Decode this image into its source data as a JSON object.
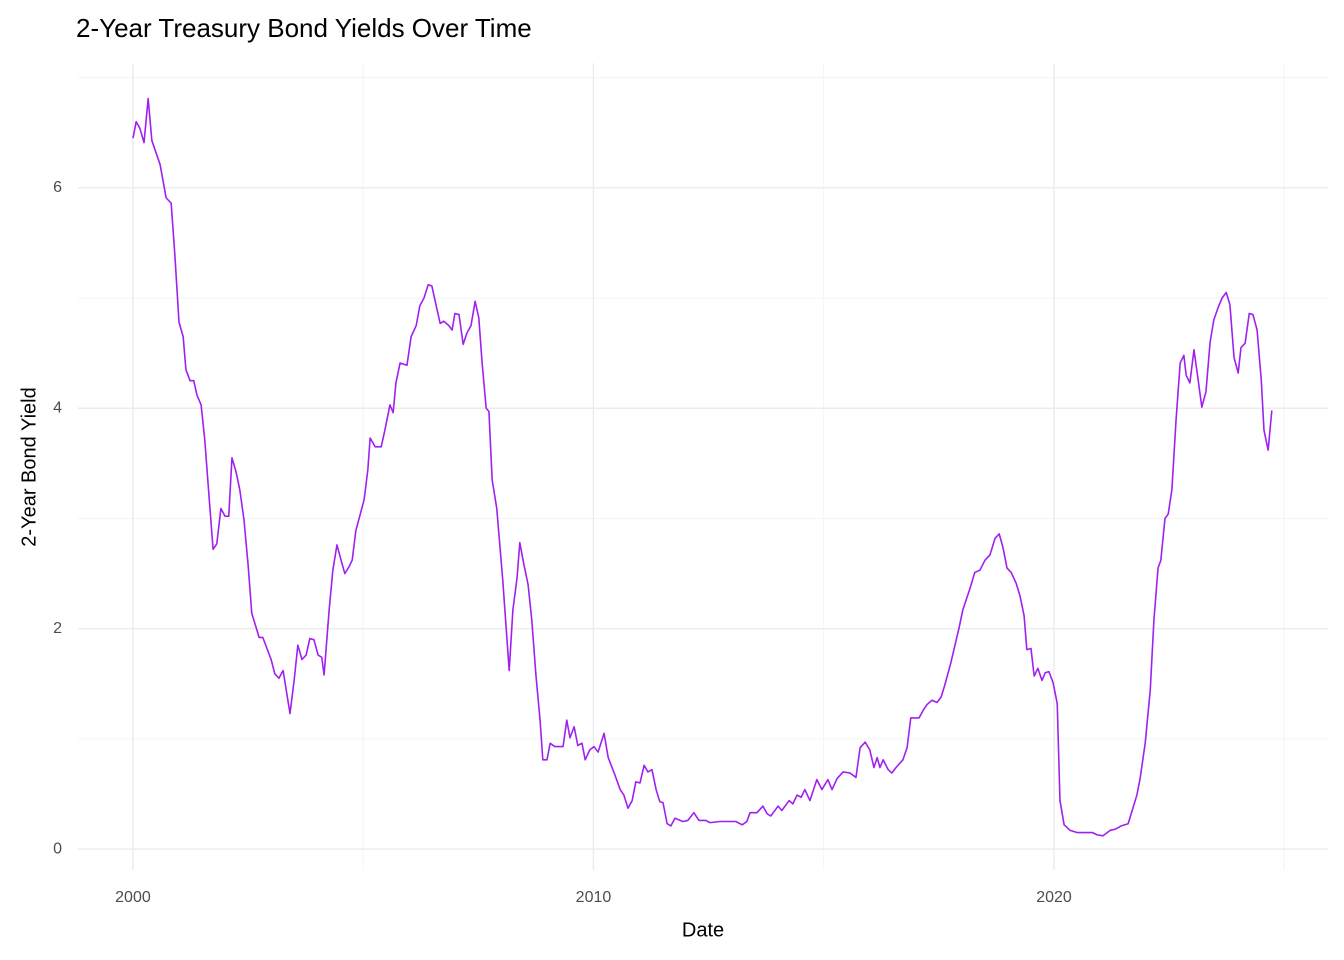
{
  "chart_data": {
    "type": "line",
    "title": "2-Year Treasury Bond Yields Over Time",
    "x_label": "Date",
    "y_label": "2-Year Bond Yield",
    "color": "#a020f0",
    "grid": true,
    "xlim": [
      1998.8,
      2025.95
    ],
    "xticks": [
      2000,
      2010,
      2020
    ],
    "x_minor_ticks": [
      2005,
      2015,
      2025
    ],
    "ylim": [
      -0.19,
      7.13
    ],
    "yticks": [
      0,
      2,
      4,
      6
    ],
    "y_minor_ticks": [
      1,
      3,
      5,
      7
    ],
    "x": [
      2000.0,
      2000.07,
      2000.15,
      2000.24,
      2000.33,
      2000.41,
      2000.59,
      2000.72,
      2000.83,
      2000.91,
      2001.0,
      2001.09,
      2001.15,
      2001.24,
      2001.32,
      2001.39,
      2001.48,
      2001.56,
      2001.65,
      2001.74,
      2001.82,
      2001.91,
      2002.0,
      2002.08,
      2002.15,
      2002.24,
      2002.32,
      2002.41,
      2002.5,
      2002.58,
      2002.74,
      2002.82,
      2002.91,
      2003.0,
      2003.08,
      2003.17,
      2003.26,
      2003.41,
      2003.5,
      2003.58,
      2003.67,
      2003.76,
      2003.84,
      2003.93,
      2004.02,
      2004.1,
      2004.15,
      2004.26,
      2004.34,
      2004.43,
      2004.52,
      2004.6,
      2004.69,
      2004.76,
      2004.84,
      2005.02,
      2005.1,
      2005.15,
      2005.26,
      2005.39,
      2005.47,
      2005.58,
      2005.65,
      2005.71,
      2005.8,
      2005.95,
      2006.04,
      2006.15,
      2006.23,
      2006.32,
      2006.41,
      2006.49,
      2006.58,
      2006.67,
      2006.75,
      2006.86,
      2006.93,
      2006.99,
      2007.08,
      2007.17,
      2007.25,
      2007.34,
      2007.43,
      2007.51,
      2007.58,
      2007.67,
      2007.73,
      2007.8,
      2007.9,
      2008.03,
      2008.17,
      2008.25,
      2008.34,
      2008.4,
      2008.49,
      2008.58,
      2008.66,
      2008.75,
      2008.84,
      2008.9,
      2008.99,
      2009.06,
      2009.16,
      2009.34,
      2009.42,
      2009.49,
      2009.58,
      2009.66,
      2009.75,
      2009.82,
      2009.92,
      2010.01,
      2010.1,
      2010.23,
      2010.32,
      2010.45,
      2010.58,
      2010.66,
      2010.75,
      2010.84,
      2010.92,
      2011.01,
      2011.1,
      2011.18,
      2011.27,
      2011.36,
      2011.44,
      2011.51,
      2011.6,
      2011.68,
      2011.77,
      2011.94,
      2012.05,
      2012.18,
      2012.29,
      2012.44,
      2012.53,
      2012.75,
      2013.09,
      2013.23,
      2013.33,
      2013.4,
      2013.55,
      2013.68,
      2013.77,
      2013.85,
      2014.01,
      2014.09,
      2014.25,
      2014.33,
      2014.42,
      2014.51,
      2014.59,
      2014.7,
      2014.85,
      2014.96,
      2015.09,
      2015.18,
      2015.29,
      2015.42,
      2015.57,
      2015.7,
      2015.79,
      2015.9,
      2016.0,
      2016.09,
      2016.16,
      2016.22,
      2016.29,
      2016.4,
      2016.48,
      2016.57,
      2016.72,
      2016.81,
      2016.89,
      2017.0,
      2017.07,
      2017.16,
      2017.24,
      2017.35,
      2017.46,
      2017.55,
      2017.63,
      2017.76,
      2017.94,
      2018.02,
      2018.18,
      2018.28,
      2018.39,
      2018.5,
      2018.61,
      2018.72,
      2018.81,
      2018.89,
      2018.98,
      2019.07,
      2019.18,
      2019.26,
      2019.35,
      2019.41,
      2019.5,
      2019.57,
      2019.65,
      2019.74,
      2019.81,
      2019.89,
      2019.98,
      2020.07,
      2020.13,
      2020.22,
      2020.35,
      2020.5,
      2020.67,
      2020.83,
      2020.93,
      2021.06,
      2021.22,
      2021.33,
      2021.46,
      2021.61,
      2021.69,
      2021.8,
      2021.87,
      2021.98,
      2022.09,
      2022.17,
      2022.26,
      2022.32,
      2022.41,
      2022.48,
      2022.56,
      2022.65,
      2022.74,
      2022.82,
      2022.87,
      2022.95,
      2023.04,
      2023.11,
      2023.21,
      2023.3,
      2023.39,
      2023.47,
      2023.56,
      2023.65,
      2023.74,
      2023.82,
      2023.91,
      2024.0,
      2024.06,
      2024.15,
      2024.24,
      2024.32,
      2024.41,
      2024.5,
      2024.56,
      2024.65,
      2024.73
    ],
    "values": [
      6.45,
      6.6,
      6.54,
      6.41,
      6.81,
      6.43,
      6.21,
      5.91,
      5.86,
      5.39,
      4.78,
      4.65,
      4.35,
      4.25,
      4.25,
      4.12,
      4.03,
      3.71,
      3.21,
      2.72,
      2.77,
      3.09,
      3.02,
      3.02,
      3.55,
      3.42,
      3.26,
      2.99,
      2.58,
      2.14,
      1.92,
      1.92,
      1.82,
      1.72,
      1.59,
      1.55,
      1.62,
      1.23,
      1.53,
      1.85,
      1.72,
      1.76,
      1.91,
      1.9,
      1.76,
      1.74,
      1.58,
      2.17,
      2.53,
      2.76,
      2.62,
      2.5,
      2.56,
      2.62,
      2.89,
      3.17,
      3.44,
      3.73,
      3.65,
      3.65,
      3.8,
      4.03,
      3.96,
      4.23,
      4.41,
      4.39,
      4.65,
      4.75,
      4.93,
      5.0,
      5.12,
      5.11,
      4.94,
      4.77,
      4.79,
      4.75,
      4.71,
      4.86,
      4.85,
      4.58,
      4.68,
      4.75,
      4.97,
      4.82,
      4.42,
      4.0,
      3.97,
      3.35,
      3.09,
      2.44,
      1.62,
      2.17,
      2.46,
      2.78,
      2.58,
      2.4,
      2.08,
      1.58,
      1.17,
      0.81,
      0.81,
      0.96,
      0.93,
      0.93,
      1.17,
      1.01,
      1.11,
      0.94,
      0.96,
      0.81,
      0.9,
      0.93,
      0.88,
      1.05,
      0.83,
      0.69,
      0.54,
      0.49,
      0.37,
      0.44,
      0.61,
      0.6,
      0.76,
      0.7,
      0.72,
      0.54,
      0.43,
      0.42,
      0.23,
      0.21,
      0.28,
      0.25,
      0.26,
      0.33,
      0.26,
      0.26,
      0.24,
      0.25,
      0.25,
      0.22,
      0.25,
      0.33,
      0.33,
      0.39,
      0.32,
      0.3,
      0.39,
      0.35,
      0.44,
      0.41,
      0.49,
      0.47,
      0.54,
      0.44,
      0.63,
      0.54,
      0.63,
      0.54,
      0.64,
      0.7,
      0.69,
      0.65,
      0.92,
      0.97,
      0.9,
      0.74,
      0.83,
      0.74,
      0.81,
      0.72,
      0.69,
      0.74,
      0.81,
      0.92,
      1.19,
      1.19,
      1.19,
      1.26,
      1.31,
      1.35,
      1.33,
      1.38,
      1.49,
      1.69,
      2.01,
      2.17,
      2.37,
      2.51,
      2.53,
      2.62,
      2.67,
      2.82,
      2.86,
      2.74,
      2.55,
      2.51,
      2.41,
      2.3,
      2.12,
      1.81,
      1.82,
      1.57,
      1.64,
      1.53,
      1.6,
      1.61,
      1.51,
      1.32,
      0.44,
      0.22,
      0.17,
      0.15,
      0.15,
      0.15,
      0.13,
      0.12,
      0.17,
      0.18,
      0.21,
      0.23,
      0.34,
      0.49,
      0.64,
      0.96,
      1.44,
      2.08,
      2.55,
      2.62,
      3.0,
      3.04,
      3.26,
      3.89,
      4.41,
      4.48,
      4.3,
      4.23,
      4.53,
      4.32,
      4.01,
      4.15,
      4.6,
      4.8,
      4.91,
      5.0,
      5.05,
      4.94,
      4.46,
      4.32,
      4.55,
      4.59,
      4.86,
      4.85,
      4.71,
      4.26,
      3.8,
      3.62,
      3.98
    ]
  }
}
